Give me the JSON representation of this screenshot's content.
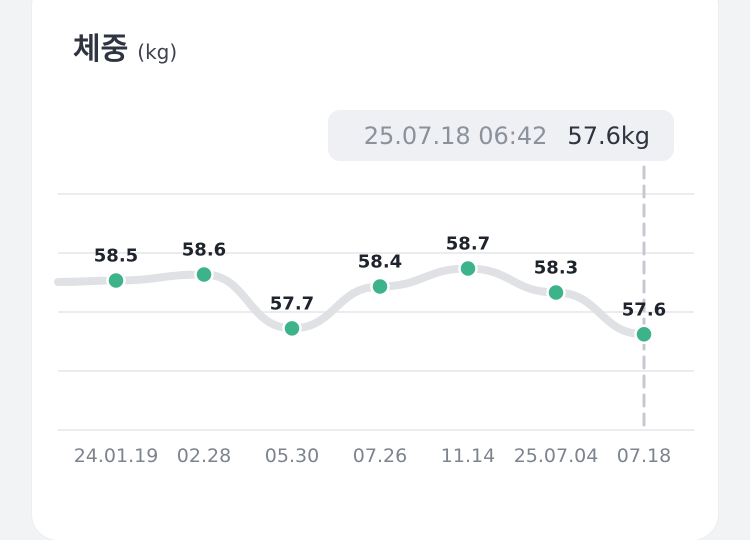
{
  "card": {
    "title": "체중",
    "unit": "(kg)"
  },
  "tooltip": {
    "datetime": "25.07.18 06:42",
    "value": "57.6kg"
  },
  "colors": {
    "point": "#3db38a",
    "line": "#dfe1e5",
    "grid": "#e3e5e8",
    "guide": "#c5c9cf"
  },
  "chart_data": {
    "type": "line",
    "categories": [
      "24.01.19",
      "02.28",
      "05.30",
      "07.26",
      "11.14",
      "25.07.04",
      "07.18"
    ],
    "values": [
      58.5,
      58.6,
      57.7,
      58.4,
      58.7,
      58.3,
      57.6
    ],
    "title": "체중",
    "ylabel": "(kg)",
    "grid": true,
    "highlighted_index": 6
  }
}
